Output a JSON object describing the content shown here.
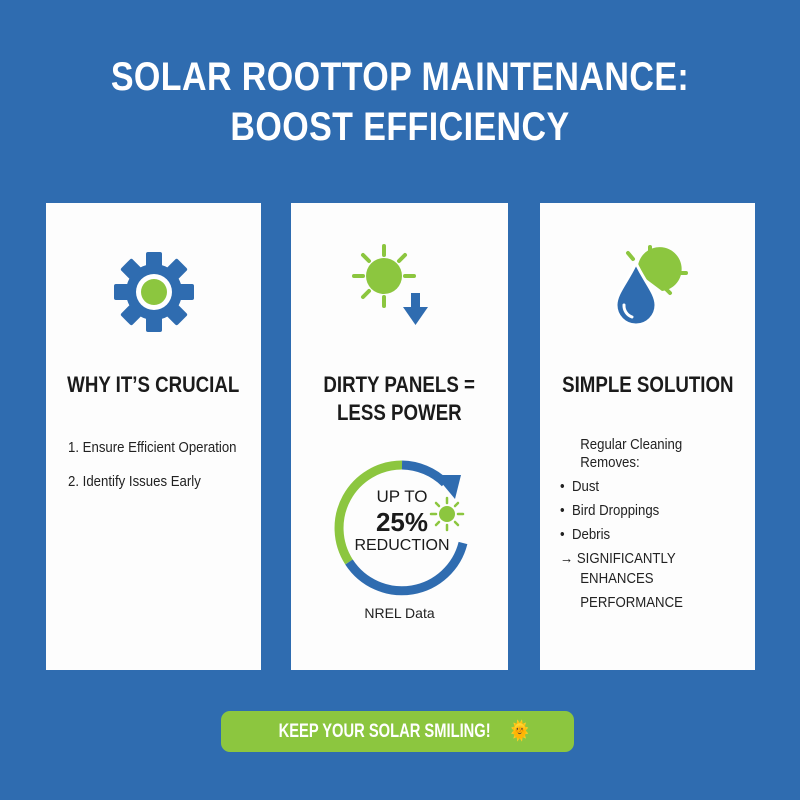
{
  "title": {
    "line1": "SOLAR ROOTTOP MAINTENANCE:",
    "line2": "BOOST EFFICIENCY"
  },
  "colors": {
    "background": "#2f6cb0",
    "accent_green": "#8cc63f",
    "accent_blue": "#2f6cb0",
    "card": "#fdfdfd"
  },
  "cards": [
    {
      "icon": "gear-icon",
      "heading": "WHY IT’S CRUCIAL",
      "items": [
        "1. Ensure Efficient Operation",
        "2. Identify Issues Early"
      ]
    },
    {
      "icon": "sun-down-arrow-icon",
      "heading_line1": "DIRTY PANELS =",
      "heading_line2": "LESS POWER",
      "stat": {
        "prefix": "UP TO",
        "value": "25%",
        "label": "REDUCTION"
      },
      "source": "NREL Data"
    },
    {
      "icon": "water-drop-sun-icon",
      "heading": "SIMPLE SOLUTION",
      "intro_line1": "Regular Cleaning",
      "intro_line2": "Removes:",
      "items": [
        "Dust",
        "Bird Droppings",
        "Debris"
      ],
      "result_line1": "SIGNIFICANTLY",
      "result_line2": "ENHANCES PERFORMANCE"
    }
  ],
  "footer": {
    "label": "KEEP YOUR SOLAR SMILING!",
    "emoji": "🌞"
  }
}
